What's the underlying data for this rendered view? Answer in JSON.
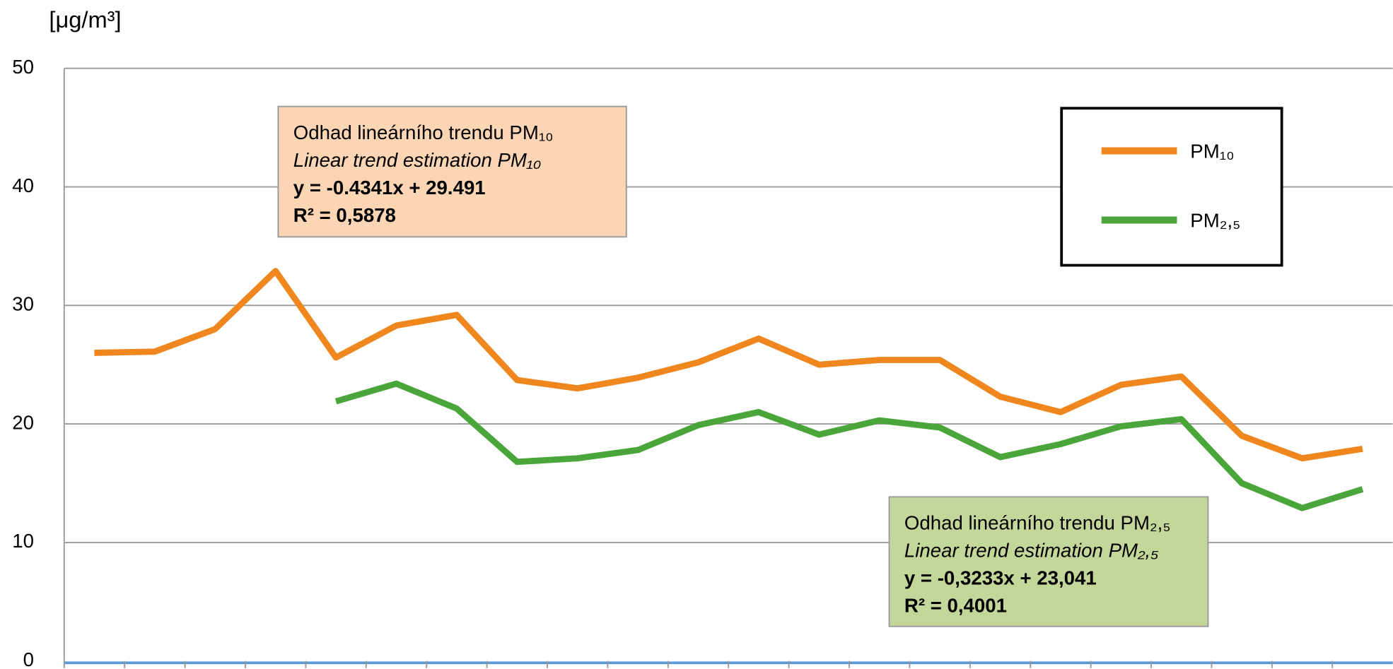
{
  "chart_data": {
    "type": "line",
    "y_label": "[μg/m³]",
    "categories": [
      null,
      null,
      null,
      null,
      null,
      null,
      null,
      null,
      null,
      null,
      null,
      null,
      null,
      null,
      null,
      null,
      null,
      null,
      null,
      null,
      null,
      null
    ],
    "series": [
      {
        "name": "PM₁₀",
        "color": "#f0861e",
        "values": [
          26.0,
          26.1,
          28.0,
          32.9,
          25.6,
          28.3,
          29.2,
          23.7,
          23.0,
          23.9,
          25.2,
          27.2,
          25.0,
          25.4,
          25.4,
          22.3,
          21.0,
          23.3,
          24.0,
          19.0,
          17.1,
          17.9
        ]
      },
      {
        "name": "PM₂,₅",
        "color": "#4aa63a",
        "values": [
          null,
          null,
          null,
          null,
          21.9,
          23.4,
          21.3,
          16.8,
          17.1,
          17.8,
          19.9,
          21.0,
          19.1,
          20.3,
          19.7,
          17.2,
          18.3,
          19.8,
          20.4,
          15.0,
          12.9,
          14.5
        ]
      }
    ],
    "ylim": [
      0,
      50
    ],
    "yticks": [
      0,
      10,
      20,
      30,
      40,
      50
    ],
    "grid": true,
    "legend": "upper right",
    "annotations": [
      {
        "color": "#fcd5b5",
        "lines": [
          "Odhad lineárního trendu PM₁₀",
          "Linear trend estimation PM₁₀",
          "y = -0.4341x + 29.491",
          "R² = 0,5878"
        ]
      },
      {
        "color": "#c4d79b",
        "lines": [
          "Odhad lineárního trendu PM₂,₅",
          "Linear trend estimation PM₂,₅",
          "y = -0,3233x + 23,041",
          "R² = 0,4001"
        ]
      }
    ]
  }
}
